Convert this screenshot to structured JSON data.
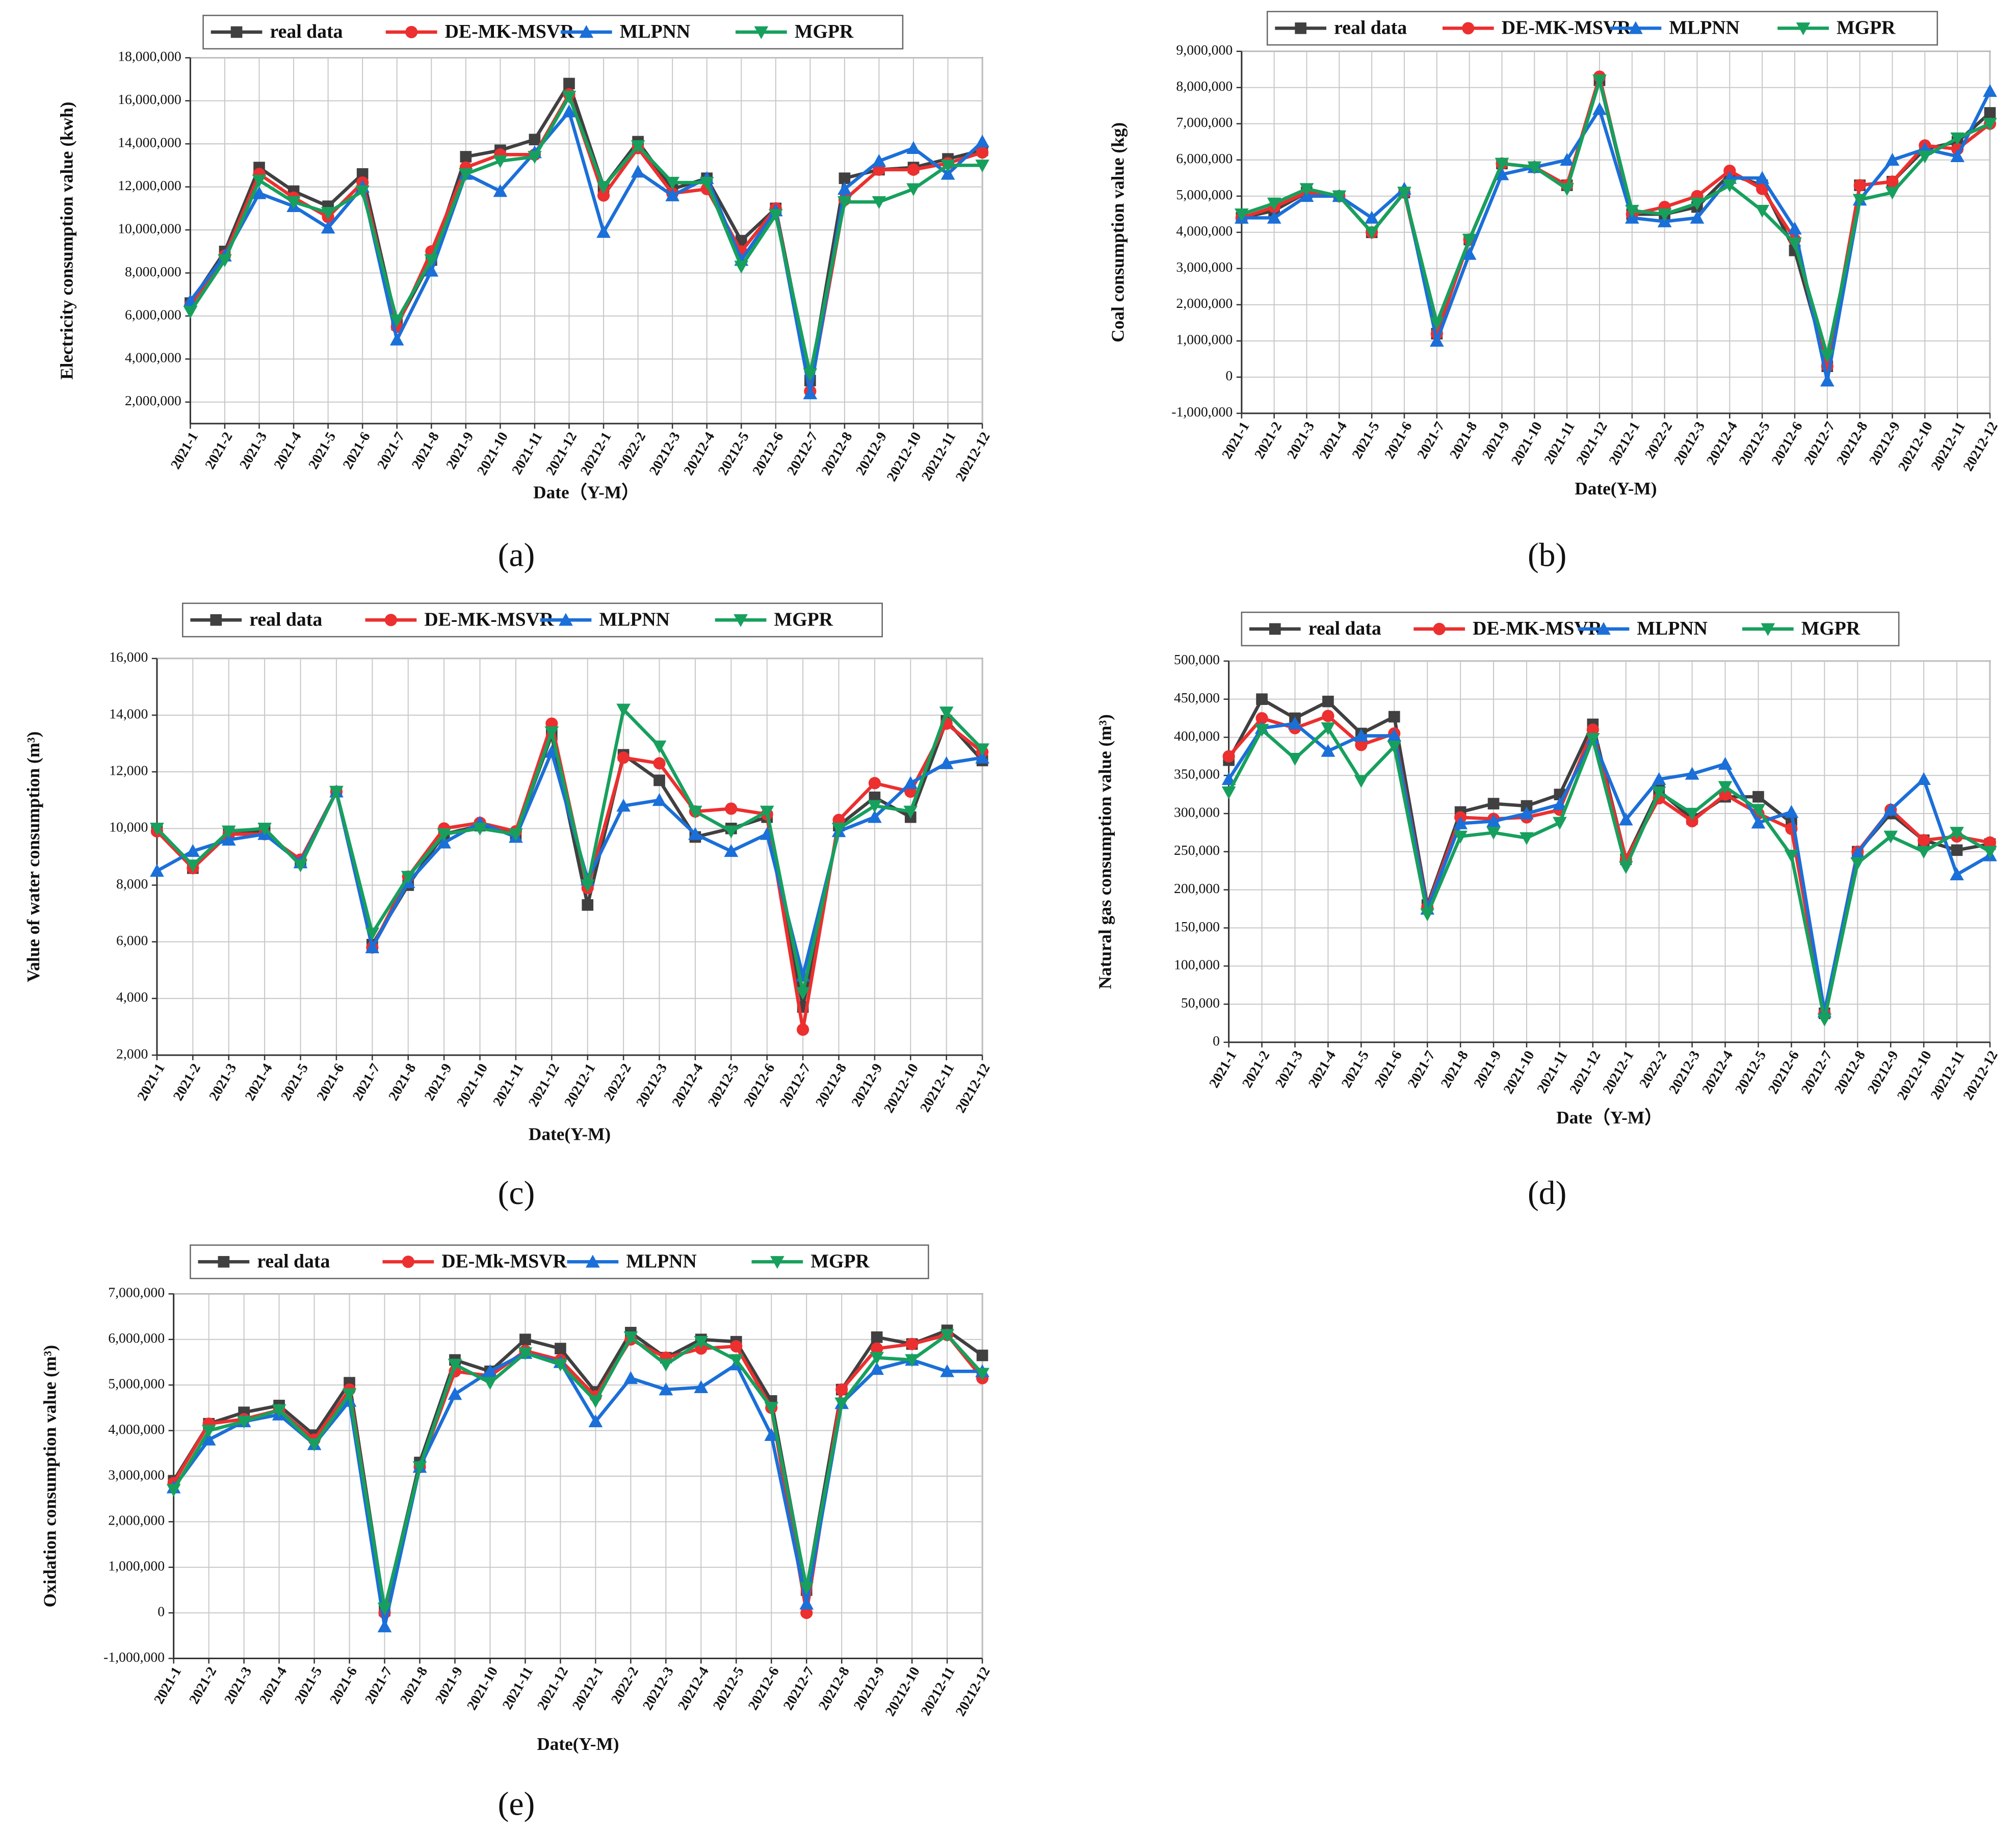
{
  "chart_data": [
    {
      "type": "line",
      "panel": "(a)",
      "x_label": "Date（Y-M）",
      "y_label": "Electricity consumption value (kwh)",
      "categories": [
        "2021-1",
        "2021-2",
        "2021-3",
        "2021-4",
        "2021-5",
        "2021-6",
        "2021-7",
        "2021-8",
        "2021-9",
        "2021-10",
        "2021-11",
        "2021-12",
        "20212-1",
        "2022-2",
        "20212-3",
        "20212-4",
        "20212-5",
        "20212-6",
        "20212-7",
        "20212-8",
        "20212-9",
        "20212-10",
        "20212-11",
        "20212-12"
      ],
      "ylim": [
        1000000,
        18000000
      ],
      "yticks": [
        {
          "value": 2000000,
          "label": "2,000,000"
        },
        {
          "value": 4000000,
          "label": "4,000,000"
        },
        {
          "value": 6000000,
          "label": "6,000,000"
        },
        {
          "value": 8000000,
          "label": "8,000,000"
        },
        {
          "value": 10000000,
          "label": "10,000,000"
        },
        {
          "value": 12000000,
          "label": "12,000,000"
        },
        {
          "value": 14000000,
          "label": "14,000,000"
        },
        {
          "value": 16000000,
          "label": "16,000,000"
        },
        {
          "value": 18000000,
          "label": "18,000,000"
        }
      ],
      "grid": true,
      "series": [
        {
          "name": "real data",
          "color": "#404040",
          "marker": "square",
          "values": [
            6600000,
            9000000,
            12900000,
            11800000,
            11100000,
            12600000,
            5600000,
            8600000,
            13400000,
            13700000,
            14200000,
            16800000,
            12000000,
            14100000,
            11900000,
            12400000,
            9500000,
            11000000,
            3000000,
            12400000,
            12800000,
            12900000,
            13300000,
            13700000
          ]
        },
        {
          "name": "DE-MK-MSVR",
          "color": "#ec2f2f",
          "marker": "circle",
          "values": [
            6500000,
            8800000,
            12600000,
            11500000,
            10600000,
            12200000,
            5500000,
            9000000,
            12900000,
            13500000,
            13500000,
            16300000,
            11600000,
            13800000,
            11700000,
            11900000,
            9000000,
            11000000,
            2500000,
            11400000,
            12800000,
            12800000,
            13100000,
            13600000
          ]
        },
        {
          "name": "MLPNN",
          "color": "#1b6fd8",
          "marker": "up",
          "values": [
            6700000,
            8800000,
            11700000,
            11100000,
            10100000,
            12000000,
            4900000,
            8100000,
            12600000,
            11800000,
            13600000,
            15500000,
            9900000,
            12700000,
            11600000,
            12400000,
            8600000,
            10900000,
            2400000,
            11900000,
            13200000,
            13800000,
            12600000,
            14100000
          ]
        },
        {
          "name": "MGPR",
          "color": "#17a05d",
          "marker": "down",
          "values": [
            6200000,
            8600000,
            12300000,
            11300000,
            10800000,
            11800000,
            5800000,
            8600000,
            12600000,
            13200000,
            13400000,
            16200000,
            12000000,
            13900000,
            12200000,
            12200000,
            8300000,
            10700000,
            3300000,
            11300000,
            11300000,
            11900000,
            13000000,
            13000000
          ]
        }
      ]
    },
    {
      "type": "line",
      "panel": "(b)",
      "x_label": "Date(Y-M)",
      "y_label": "Coal consumption value (kg)",
      "categories": [
        "2021-1",
        "2021-2",
        "2021-3",
        "2021-4",
        "2021-5",
        "2021-6",
        "2021-7",
        "2021-8",
        "2021-9",
        "2021-10",
        "2021-11",
        "2021-12",
        "20212-1",
        "2022-2",
        "20212-3",
        "20212-4",
        "20212-5",
        "20212-6",
        "20212-7",
        "20212-8",
        "20212-9",
        "20212-10",
        "20212-11",
        "20212-12"
      ],
      "ylim": [
        -1000000,
        9000000
      ],
      "yticks": [
        {
          "value": -1000000,
          "label": "-1,000,000"
        },
        0,
        {
          "value": 1000000,
          "label": "1,000,000"
        },
        {
          "value": 2000000,
          "label": "2,000,000"
        },
        {
          "value": 3000000,
          "label": "3,000,000"
        },
        {
          "value": 4000000,
          "label": "4,000,000"
        },
        {
          "value": 5000000,
          "label": "5,000,000"
        },
        {
          "value": 6000000,
          "label": "6,000,000"
        },
        {
          "value": 7000000,
          "label": "7,000,000"
        },
        {
          "value": 8000000,
          "label": "8,000,000"
        },
        {
          "value": 9000000,
          "label": "9,000,000"
        }
      ],
      "grid": true,
      "series": [
        {
          "name": "real data",
          "color": "#404040",
          "marker": "square",
          "values": [
            4400000,
            4600000,
            5100000,
            5000000,
            4000000,
            5100000,
            1200000,
            3800000,
            5900000,
            5800000,
            5300000,
            8200000,
            4500000,
            4500000,
            4700000,
            5600000,
            5300000,
            3500000,
            300000,
            5300000,
            5400000,
            6300000,
            6500000,
            7300000
          ]
        },
        {
          "name": "DE-MK-MSVR",
          "color": "#ec2f2f",
          "marker": "circle",
          "values": [
            4400000,
            4700000,
            5100000,
            5000000,
            4000000,
            5100000,
            1200000,
            3800000,
            5900000,
            5800000,
            5300000,
            8300000,
            4500000,
            4700000,
            5000000,
            5700000,
            5200000,
            3800000,
            300000,
            5300000,
            5400000,
            6400000,
            6300000,
            7000000
          ]
        },
        {
          "name": "MLPNN",
          "color": "#1b6fd8",
          "marker": "up",
          "values": [
            4400000,
            4400000,
            5000000,
            5000000,
            4400000,
            5200000,
            1000000,
            3400000,
            5600000,
            5800000,
            6000000,
            7400000,
            4400000,
            4300000,
            4400000,
            5500000,
            5500000,
            4100000,
            -100000,
            4900000,
            6000000,
            6300000,
            6100000,
            7900000
          ]
        },
        {
          "name": "MGPR",
          "color": "#17a05d",
          "marker": "down",
          "values": [
            4500000,
            4800000,
            5200000,
            5000000,
            4000000,
            5100000,
            1500000,
            3800000,
            5900000,
            5800000,
            5200000,
            8200000,
            4600000,
            4500000,
            4800000,
            5300000,
            4600000,
            3700000,
            600000,
            4900000,
            5100000,
            6100000,
            6600000,
            7000000
          ]
        }
      ]
    },
    {
      "type": "line",
      "panel": "(c)",
      "x_label": "Date(Y-M)",
      "y_label": "Value of water consumption (m³)",
      "categories": [
        "2021-1",
        "2021-2",
        "2021-3",
        "2021-4",
        "2021-5",
        "2021-6",
        "2021-7",
        "2021-8",
        "2021-9",
        "2021-10",
        "2021-11",
        "2021-12",
        "20212-1",
        "2022-2",
        "20212-3",
        "20212-4",
        "20212-5",
        "20212-6",
        "20212-7",
        "20212-8",
        "20212-9",
        "20212-10",
        "20212-11",
        "20212-12"
      ],
      "ylim": [
        2000,
        16000
      ],
      "yticks": [
        {
          "value": 2000,
          "label": "2,000"
        },
        {
          "value": 4000,
          "label": "4,000"
        },
        {
          "value": 6000,
          "label": "6,000"
        },
        {
          "value": 8000,
          "label": "8,000"
        },
        {
          "value": 10000,
          "label": "10,000"
        },
        {
          "value": 12000,
          "label": "12,000"
        },
        {
          "value": 14000,
          "label": "14,000"
        },
        {
          "value": 16000,
          "label": "16,000"
        }
      ],
      "grid": true,
      "series": [
        {
          "name": "real data",
          "color": "#404040",
          "marker": "square",
          "values": [
            10000,
            8600,
            9800,
            9900,
            8800,
            11300,
            5900,
            8000,
            9800,
            10100,
            9800,
            13300,
            7300,
            12600,
            11700,
            9700,
            10000,
            10400,
            3700,
            10100,
            11100,
            10400,
            13800,
            12400
          ]
        },
        {
          "name": "DE-MK-MSVR",
          "color": "#ec2f2f",
          "marker": "circle",
          "values": [
            9900,
            8600,
            9800,
            9800,
            8900,
            11300,
            5800,
            8300,
            10000,
            10200,
            9900,
            13700,
            7900,
            12500,
            12300,
            10600,
            10700,
            10500,
            2900,
            10300,
            11600,
            11300,
            13700,
            12700
          ]
        },
        {
          "name": "MLPNN",
          "color": "#1b6fd8",
          "marker": "up",
          "values": [
            8500,
            9200,
            9600,
            9800,
            8800,
            11300,
            5800,
            8100,
            9500,
            10200,
            9700,
            12700,
            8200,
            10800,
            11000,
            9800,
            9200,
            9800,
            4800,
            9900,
            10400,
            11600,
            12300,
            12500
          ]
        },
        {
          "name": "MGPR",
          "color": "#17a05d",
          "marker": "down",
          "values": [
            10000,
            8700,
            9900,
            10000,
            8700,
            11300,
            6300,
            8300,
            9800,
            10000,
            9800,
            13400,
            8000,
            14200,
            12900,
            10600,
            9900,
            10600,
            4200,
            10000,
            10800,
            10600,
            14100,
            12800
          ]
        }
      ]
    },
    {
      "type": "line",
      "panel": "(d)",
      "x_label": "Date（Y-M）",
      "y_label": "Natural gas consumption value (m³)",
      "categories": [
        "2021-1",
        "2021-2",
        "2021-3",
        "2021-4",
        "2021-5",
        "2021-6",
        "2021-7",
        "2021-8",
        "2021-9",
        "2021-10",
        "2021-11",
        "2021-12",
        "20212-1",
        "2022-2",
        "20212-3",
        "20212-4",
        "20212-5",
        "20212-6",
        "20212-7",
        "20212-8",
        "20212-9",
        "20212-10",
        "20212-11",
        "20212-12"
      ],
      "ylim": [
        0,
        500000
      ],
      "yticks": [
        0,
        {
          "value": 50000,
          "label": "50,000"
        },
        {
          "value": 100000,
          "label": "100,000"
        },
        {
          "value": 150000,
          "label": "150,000"
        },
        {
          "value": 200000,
          "label": "200,000"
        },
        {
          "value": 250000,
          "label": "250,000"
        },
        {
          "value": 300000,
          "label": "300,000"
        },
        {
          "value": 350000,
          "label": "350,000"
        },
        {
          "value": 400000,
          "label": "400,000"
        },
        {
          "value": 450000,
          "label": "450,000"
        },
        {
          "value": 500000,
          "label": "500,000"
        }
      ],
      "grid": true,
      "series": [
        {
          "name": "real data",
          "color": "#404040",
          "marker": "square",
          "values": [
            370000,
            450000,
            425000,
            447000,
            405000,
            427000,
            180000,
            302000,
            313000,
            310000,
            325000,
            417000,
            240000,
            330000,
            293000,
            322000,
            322000,
            288000,
            38000,
            250000,
            300000,
            265000,
            252000,
            260000
          ]
        },
        {
          "name": "DE-MK-MSVR",
          "color": "#ec2f2f",
          "marker": "circle",
          "values": [
            375000,
            425000,
            412000,
            428000,
            390000,
            405000,
            177000,
            295000,
            293000,
            295000,
            305000,
            410000,
            240000,
            320000,
            290000,
            325000,
            300000,
            280000,
            38000,
            250000,
            305000,
            265000,
            270000,
            262000
          ]
        },
        {
          "name": "MLPNN",
          "color": "#1b6fd8",
          "marker": "up",
          "values": [
            345000,
            412000,
            418000,
            382000,
            402000,
            402000,
            175000,
            287000,
            290000,
            300000,
            312000,
            398000,
            292000,
            345000,
            352000,
            365000,
            288000,
            302000,
            40000,
            248000,
            305000,
            345000,
            220000,
            245000
          ]
        },
        {
          "name": "MGPR",
          "color": "#17a05d",
          "marker": "down",
          "values": [
            328000,
            410000,
            372000,
            412000,
            343000,
            388000,
            168000,
            270000,
            275000,
            268000,
            288000,
            398000,
            230000,
            328000,
            300000,
            335000,
            305000,
            245000,
            30000,
            235000,
            270000,
            250000,
            275000,
            250000
          ]
        }
      ]
    },
    {
      "type": "line",
      "panel": "(e)",
      "x_label": "Date(Y-M)",
      "y_label": "Oxidation consumption value (m³)",
      "categories": [
        "2021-1",
        "2021-2",
        "2021-3",
        "2021-4",
        "2021-5",
        "2021-6",
        "2021-7",
        "2021-8",
        "2021-9",
        "2021-10",
        "2021-11",
        "2021-12",
        "20212-1",
        "2022-2",
        "20212-3",
        "20212-4",
        "20212-5",
        "20212-6",
        "20212-7",
        "20212-8",
        "20212-9",
        "20212-10",
        "20212-11",
        "20212-12"
      ],
      "ylim": [
        -1000000,
        7000000
      ],
      "yticks": [
        {
          "value": -1000000,
          "label": "-1,000,000"
        },
        0,
        {
          "value": 1000000,
          "label": "1,000,000"
        },
        {
          "value": 2000000,
          "label": "2,000,000"
        },
        {
          "value": 3000000,
          "label": "3,000,000"
        },
        {
          "value": 4000000,
          "label": "4,000,000"
        },
        {
          "value": 5000000,
          "label": "5,000,000"
        },
        {
          "value": 6000000,
          "label": "6,000,000"
        },
        {
          "value": 7000000,
          "label": "7,000,000"
        }
      ],
      "grid": true,
      "series": [
        {
          "name": "real data",
          "color": "#404040",
          "marker": "square",
          "values": [
            2900000,
            4150000,
            4400000,
            4550000,
            3900000,
            5050000,
            50000,
            3300000,
            5550000,
            5300000,
            6000000,
            5800000,
            4850000,
            6150000,
            5600000,
            6000000,
            5950000,
            4650000,
            500000,
            4900000,
            6050000,
            5900000,
            6200000,
            5650000
          ]
        },
        {
          "name": "DE-Mk-MSVR",
          "color": "#ec2f2f",
          "marker": "circle",
          "values": [
            2850000,
            4150000,
            4250000,
            4450000,
            3800000,
            4900000,
            0,
            3200000,
            5300000,
            5200000,
            5750000,
            5550000,
            4750000,
            6000000,
            5600000,
            5800000,
            5850000,
            4500000,
            0,
            4900000,
            5800000,
            5900000,
            6100000,
            5150000
          ]
        },
        {
          "name": "MLPNN",
          "color": "#1b6fd8",
          "marker": "up",
          "values": [
            2750000,
            3800000,
            4200000,
            4350000,
            3700000,
            4650000,
            -300000,
            3200000,
            4800000,
            5300000,
            5700000,
            5500000,
            4200000,
            5150000,
            4900000,
            4950000,
            5450000,
            3900000,
            200000,
            4600000,
            5350000,
            5550000,
            5300000,
            5300000
          ]
        },
        {
          "name": "MGPR",
          "color": "#17a05d",
          "marker": "down",
          "values": [
            2700000,
            4000000,
            4200000,
            4450000,
            3700000,
            4800000,
            100000,
            3200000,
            5450000,
            5050000,
            5700000,
            5450000,
            4650000,
            6050000,
            5450000,
            5950000,
            5550000,
            4500000,
            550000,
            4600000,
            5600000,
            5550000,
            6100000,
            5250000
          ]
        }
      ]
    }
  ]
}
